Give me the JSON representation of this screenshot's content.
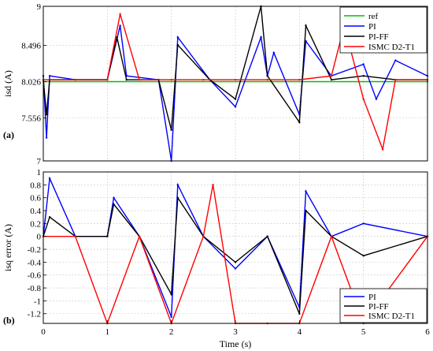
{
  "chart_data": [
    {
      "type": "line",
      "panel_label": "(a)",
      "ylabel": "isd (A)",
      "xlim": [
        0,
        6
      ],
      "ylim": [
        7,
        9
      ],
      "yticks": [
        7,
        7.556,
        8.026,
        8.496,
        9
      ],
      "ytick_labels": [
        "7",
        "7.556",
        "8.026",
        "8.496",
        "9"
      ],
      "grid": true,
      "legend_position": "top-right",
      "legend": [
        "ref",
        "PI",
        "PI-FF",
        "ISMC D2-T1"
      ],
      "series": [
        {
          "name": "ref",
          "color": "#00c000",
          "x": [
            0,
            6
          ],
          "y": [
            8.026,
            8.026
          ]
        },
        {
          "name": "PI",
          "color": "#0000ff",
          "x": [
            0,
            0.05,
            0.1,
            0.5,
            1.0,
            1.2,
            1.3,
            1.8,
            2.0,
            2.1,
            2.6,
            3.0,
            3.4,
            3.5,
            3.6,
            4.0,
            4.1,
            4.5,
            5.0,
            5.2,
            5.5,
            6.0
          ],
          "y": [
            8.1,
            7.3,
            8.1,
            8.05,
            8.05,
            8.75,
            8.1,
            8.05,
            7.0,
            8.6,
            8.05,
            7.7,
            8.6,
            8.1,
            8.4,
            7.6,
            8.55,
            8.1,
            8.25,
            7.8,
            8.3,
            8.1
          ]
        },
        {
          "name": "PI-FF",
          "color": "#000000",
          "x": [
            0,
            0.05,
            0.1,
            0.5,
            1.0,
            1.15,
            1.3,
            1.8,
            2.0,
            2.1,
            2.6,
            3.0,
            3.4,
            3.5,
            4.0,
            4.1,
            4.5,
            5.0,
            5.5,
            6.0
          ],
          "y": [
            8.05,
            7.6,
            8.05,
            8.05,
            8.05,
            8.6,
            8.05,
            8.05,
            7.4,
            8.5,
            8.05,
            7.8,
            9.0,
            8.1,
            7.5,
            8.75,
            8.05,
            8.1,
            8.05,
            8.05
          ]
        },
        {
          "name": "ISMC D2-T1",
          "color": "#ff0000",
          "x": [
            0,
            0.5,
            1.0,
            1.2,
            1.5,
            2.0,
            2.5,
            3.0,
            3.5,
            4.0,
            4.5,
            4.7,
            5.0,
            5.3,
            5.5,
            6.0
          ],
          "y": [
            8.05,
            8.05,
            8.05,
            8.9,
            8.05,
            8.05,
            8.05,
            8.05,
            8.05,
            8.05,
            8.1,
            8.75,
            7.8,
            7.15,
            8.05,
            8.05
          ]
        }
      ]
    },
    {
      "type": "line",
      "panel_label": "(b)",
      "ylabel": "isq error (A)",
      "xlabel": "Time (s)",
      "xlim": [
        0,
        6
      ],
      "ylim": [
        -1.35,
        1
      ],
      "xticks": [
        0,
        1,
        2,
        3,
        4,
        5,
        6
      ],
      "xtick_labels": [
        "0",
        "1",
        "2",
        "3",
        "4",
        "5",
        "6"
      ],
      "yticks": [
        -1.2,
        -1,
        -0.8,
        -0.6,
        -0.4,
        -0.2,
        0,
        0.2,
        0.4,
        0.6,
        0.8,
        1
      ],
      "ytick_labels": [
        "-1.2",
        "-1",
        "-0.8",
        "-0.6",
        "-0.4",
        "-0.2",
        "0",
        "0.2",
        "0.4",
        "0.6",
        "0.8",
        "1"
      ],
      "grid": true,
      "legend_position": "bottom-right",
      "legend": [
        "PI",
        "PI-FF",
        "ISMC D2-T1"
      ],
      "series": [
        {
          "name": "PI",
          "color": "#0000ff",
          "x": [
            0,
            0.1,
            0.5,
            1.0,
            1.1,
            1.5,
            2.0,
            2.1,
            2.5,
            3.0,
            3.5,
            4.0,
            4.1,
            4.5,
            5.0,
            6.0
          ],
          "y": [
            0.0,
            0.9,
            0.0,
            0.0,
            0.6,
            0.0,
            -1.25,
            0.8,
            0.0,
            -0.5,
            0.0,
            -1.1,
            0.7,
            0.0,
            0.2,
            0.0
          ]
        },
        {
          "name": "PI-FF",
          "color": "#000000",
          "x": [
            0,
            0.1,
            0.5,
            1.0,
            1.1,
            1.5,
            2.0,
            2.1,
            2.5,
            3.0,
            3.5,
            4.0,
            4.1,
            4.5,
            5.0,
            6.0
          ],
          "y": [
            0.0,
            0.3,
            0.0,
            0.0,
            0.5,
            0.0,
            -0.9,
            0.6,
            0.0,
            -0.4,
            0.0,
            -1.2,
            0.4,
            0.0,
            -0.3,
            0.0
          ]
        },
        {
          "name": "ISMC D2-T1",
          "color": "#ff0000",
          "x": [
            0,
            0.5,
            1.0,
            1.5,
            2.0,
            2.5,
            2.65,
            3.0,
            3.5,
            4.0,
            4.5,
            5.0,
            6.0
          ],
          "y": [
            0.0,
            0.0,
            -1.35,
            0.0,
            -1.35,
            0.0,
            0.8,
            -1.35,
            -1.35,
            -1.35,
            0.0,
            -1.35,
            0.0
          ]
        }
      ]
    }
  ]
}
